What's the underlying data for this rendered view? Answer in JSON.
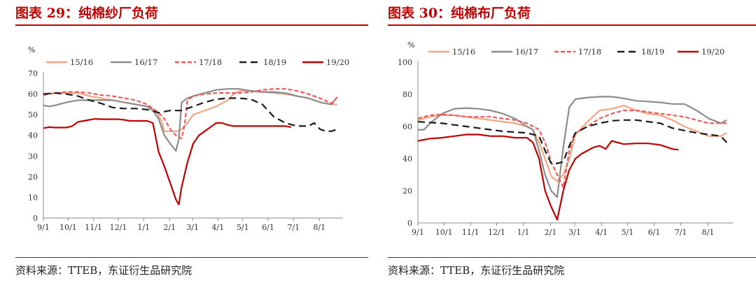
{
  "charts": [
    {
      "title": "图表 29：纯棉纱厂负荷",
      "source": "资料来源：TTEB，东证衍生品研究院",
      "chart_data": {
        "type": "line",
        "ylabel": "%",
        "ylim": [
          0,
          70
        ],
        "yticks": [
          0,
          10,
          20,
          30,
          40,
          50,
          60,
          70
        ],
        "xlim": [
          0,
          52
        ],
        "xticks": [
          {
            "label": "9/1",
            "week": 0
          },
          {
            "label": "10/1",
            "week": 4.3
          },
          {
            "label": "11/1",
            "week": 8.7
          },
          {
            "label": "12/1",
            "week": 13
          },
          {
            "label": "1/1",
            "week": 17.4
          },
          {
            "label": "2/1",
            "week": 21.9
          },
          {
            "label": "3/1",
            "week": 25.9
          },
          {
            "label": "4/1",
            "week": 30.3
          },
          {
            "label": "5/1",
            "week": 34.6
          },
          {
            "label": "6/1",
            "week": 39
          },
          {
            "label": "7/1",
            "week": 43.4
          },
          {
            "label": "8/1",
            "week": 47.9
          }
        ],
        "legend_position": "top",
        "series": [
          {
            "name": "15/16",
            "color": "#f4a582",
            "style": "solid",
            "x": [
              0,
              2,
              4,
              6,
              8,
              10,
              12,
              14,
              16,
              18,
              19.5,
              20.5,
              21,
              22,
              23,
              23.5,
              24,
              25,
              26,
              28,
              30,
              32,
              33,
              34,
              36,
              38,
              40,
              42,
              44,
              46,
              48,
              50,
              51
            ],
            "y": [
              60,
              60.5,
              60.5,
              60.5,
              59,
              58,
              57,
              56,
              55,
              54,
              52,
              47,
              42,
              42,
              42,
              42,
              43,
              46,
              50,
              52,
              54,
              57,
              60,
              61.5,
              61.5,
              61,
              60.5,
              60,
              59,
              58,
              56,
              55,
              55
            ]
          },
          {
            "name": "16/17",
            "color": "#8c8c8c",
            "style": "solid",
            "x": [
              0,
              1,
              2,
              4,
              6,
              8,
              10,
              12,
              14,
              16,
              18,
              19,
              20,
              21,
              22,
              23,
              23.5,
              24,
              25,
              26,
              28,
              30,
              32,
              34,
              36,
              38,
              40,
              42,
              44,
              46,
              48,
              50,
              51
            ],
            "y": [
              54.5,
              54,
              54.5,
              56,
              57,
              57,
              57,
              57,
              56,
              55,
              54,
              52,
              48,
              40,
              36,
              32.5,
              38,
              56,
              58,
              59,
              60.5,
              62,
              62.5,
              62.5,
              61.5,
              61,
              61,
              60.5,
              59,
              58,
              56,
              55,
              58.5
            ]
          },
          {
            "name": "17/18",
            "color": "#f05a5a",
            "style": "dash-short",
            "x": [
              0,
              2,
              4,
              6,
              8,
              10,
              12,
              14,
              16,
              18,
              20,
              21,
              22,
              23,
              24,
              24.5,
              25,
              26,
              27,
              28,
              30,
              32,
              34,
              36,
              38,
              40,
              42,
              44,
              46,
              48,
              50,
              51
            ],
            "y": [
              59.5,
              60.5,
              61,
              61,
              60.5,
              59.5,
              59,
              58,
              57,
              55,
              51,
              48,
              43,
              40,
              38.5,
              45,
              57,
              59,
              59.5,
              60,
              60.5,
              60.5,
              60.5,
              61,
              62,
              62.5,
              62.5,
              61.5,
              60,
              58,
              55.5,
              58.5
            ]
          },
          {
            "name": "18/19",
            "color": "#1a1a1a",
            "style": "dash-long",
            "x": [
              0,
              2,
              4,
              6,
              8,
              10,
              12,
              14,
              16,
              18,
              20,
              22,
              24,
              26,
              28,
              30,
              32,
              34,
              36,
              38,
              40,
              42,
              44,
              46,
              47,
              48,
              49,
              50,
              51
            ],
            "y": [
              60,
              60.5,
              60,
              59,
              57,
              55.5,
              53.5,
              53,
              53,
              52.5,
              51,
              52,
              52,
              54,
              56,
              57.5,
              58,
              58,
              57.5,
              55,
              49,
              46,
              44.5,
              44.5,
              46,
              43,
              42,
              42,
              43
            ]
          },
          {
            "name": "19/20",
            "color": "#c00000",
            "style": "solid",
            "x": [
              0,
              1,
              2,
              3,
              4,
              5,
              6,
              7,
              8,
              9,
              10,
              11,
              12,
              13,
              14,
              15,
              16,
              17,
              18,
              19,
              20,
              21,
              22,
              23,
              23.5,
              24,
              25,
              26,
              27,
              28,
              29,
              30,
              31,
              32,
              33,
              34,
              36,
              38,
              40,
              42,
              43
            ],
            "y": [
              43.5,
              44,
              43.8,
              43.8,
              43.8,
              44.5,
              46.5,
              47,
              47.5,
              48,
              47.8,
              47.8,
              47.8,
              47.8,
              47.5,
              47,
              47,
              47,
              47,
              46,
              32,
              25,
              17,
              9,
              6.5,
              15,
              27,
              36,
              40,
              42,
              44,
              46,
              46,
              45,
              44.5,
              44.5,
              44.5,
              44.5,
              44.5,
              44.5,
              44
            ]
          }
        ]
      }
    },
    {
      "title": "图表 30：纯棉布厂负荷",
      "source": "资料来源：TTEB，东证衍生品研究院",
      "chart_data": {
        "type": "line",
        "ylabel": "%",
        "ylim": [
          0,
          100
        ],
        "yticks": [
          0,
          20,
          40,
          60,
          80,
          100
        ],
        "xlim": [
          0,
          52
        ],
        "xticks": [
          {
            "label": "9/1",
            "week": 0
          },
          {
            "label": "10/1",
            "week": 4.3
          },
          {
            "label": "11/1",
            "week": 8.7
          },
          {
            "label": "12/1",
            "week": 13
          },
          {
            "label": "1/1",
            "week": 17.4
          },
          {
            "label": "2/1",
            "week": 21.9
          },
          {
            "label": "3/1",
            "week": 25.9
          },
          {
            "label": "4/1",
            "week": 30.3
          },
          {
            "label": "5/1",
            "week": 34.6
          },
          {
            "label": "6/1",
            "week": 39
          },
          {
            "label": "7/1",
            "week": 43.4
          },
          {
            "label": "8/1",
            "week": 47.9
          }
        ],
        "legend_position": "top",
        "series": [
          {
            "name": "15/16",
            "color": "#f4a582",
            "style": "solid",
            "x": [
              0,
              2,
              4,
              6,
              8,
              10,
              12,
              14,
              16,
              18,
              19,
              20,
              21,
              22,
              23,
              24,
              25,
              26,
              28,
              30,
              32,
              34,
              36,
              38,
              40,
              42,
              44,
              46,
              48,
              50,
              51
            ],
            "y": [
              64,
              66,
              67,
              67,
              66,
              65,
              64,
              63,
              62,
              60,
              58,
              50,
              40,
              29,
              26,
              30,
              40,
              55,
              63,
              70,
              71,
              73,
              70,
              68,
              67,
              64,
              60,
              57,
              54,
              54,
              56
            ]
          },
          {
            "name": "16/17",
            "color": "#8c8c8c",
            "style": "solid",
            "x": [
              0,
              1,
              2,
              4,
              6,
              8,
              10,
              12,
              14,
              16,
              18,
              19,
              20,
              21,
              22,
              23,
              24,
              25,
              26,
              28,
              30,
              32,
              34,
              36,
              38,
              40,
              42,
              44,
              46,
              48,
              50,
              51
            ],
            "y": [
              58,
              58,
              62,
              68,
              71,
              71.5,
              71,
              70,
              68,
              65,
              60,
              58,
              45,
              30,
              20,
              16,
              47,
              72,
              77,
              78,
              78.5,
              78.5,
              77.5,
              76,
              75.5,
              75,
              74,
              74,
              70,
              65,
              62,
              64
            ]
          },
          {
            "name": "17/18",
            "color": "#f05a5a",
            "style": "dash-short",
            "x": [
              0,
              2,
              4,
              6,
              8,
              10,
              12,
              14,
              16,
              18,
              20,
              21,
              22,
              23,
              24,
              25,
              26,
              28,
              30,
              32,
              34,
              36,
              38,
              40,
              42,
              44,
              46,
              48,
              50,
              51
            ],
            "y": [
              65,
              67,
              67.5,
              67,
              66,
              66,
              66,
              65,
              64,
              62,
              58,
              50,
              38,
              30,
              22,
              45,
              56,
              60,
              65,
              68,
              70,
              70,
              69,
              68,
              67,
              66,
              64,
              62,
              62,
              62
            ]
          },
          {
            "name": "18/19",
            "color": "#1a1a1a",
            "style": "dash-long",
            "x": [
              0,
              2,
              4,
              6,
              8,
              10,
              12,
              14,
              16,
              18,
              20,
              21,
              22,
              23,
              24,
              25,
              26,
              28,
              30,
              32,
              34,
              36,
              38,
              40,
              42,
              44,
              46,
              48,
              50,
              51
            ],
            "y": [
              63,
              62.5,
              62,
              61,
              60,
              59,
              58,
              57,
              56.5,
              56,
              54,
              45,
              37,
              37,
              38,
              48,
              56,
              60,
              62,
              63.5,
              64,
              64,
              63,
              62,
              59,
              57.5,
              56,
              55,
              54,
              50
            ]
          },
          {
            "name": "19/20",
            "color": "#c00000",
            "style": "solid",
            "x": [
              0,
              2,
              4,
              6,
              8,
              10,
              12,
              14,
              16,
              18,
              19,
              20,
              21,
              22,
              23,
              24,
              25,
              26,
              27,
              28,
              29,
              30,
              31,
              32,
              33,
              34,
              36,
              38,
              40,
              42,
              43
            ],
            "y": [
              51,
              52.5,
              53,
              54,
              55,
              55,
              54,
              54,
              53,
              53,
              50,
              40,
              20,
              10,
              2,
              20,
              33,
              40,
              43,
              45,
              47,
              48,
              46,
              51,
              50,
              49,
              49.5,
              49.5,
              48.5,
              46,
              45.5
            ]
          }
        ]
      }
    }
  ]
}
